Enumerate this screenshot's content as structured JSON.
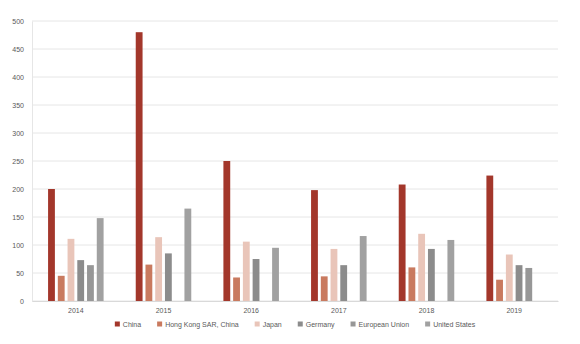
{
  "chart_data": {
    "type": "bar",
    "categories": [
      "2014",
      "2015",
      "2016",
      "2017",
      "2018",
      "2019"
    ],
    "series": [
      {
        "name": "China",
        "color": "#a3372b",
        "values": [
          200,
          480,
          250,
          198,
          208,
          224
        ]
      },
      {
        "name": "Hong Kong SAR, China",
        "color": "#c97a5f",
        "values": [
          45,
          65,
          42,
          44,
          60,
          38
        ]
      },
      {
        "name": "Japan",
        "color": "#e9c5b9",
        "values": [
          111,
          114,
          106,
          93,
          120,
          83
        ]
      },
      {
        "name": "Germany",
        "color": "#8c8c8c",
        "values": [
          73,
          85,
          75,
          64,
          93,
          64
        ]
      },
      {
        "name": "European Union",
        "color": "#979797",
        "values": [
          64,
          null,
          null,
          null,
          null,
          59
        ]
      },
      {
        "name": "United States",
        "color": "#a1a1a1",
        "values": [
          148,
          165,
          95,
          116,
          109,
          null
        ]
      }
    ],
    "ylim": [
      0,
      500
    ],
    "yticks": [
      0,
      50,
      100,
      150,
      200,
      250,
      300,
      350,
      400,
      450,
      500
    ],
    "grid": true,
    "legend": "bottom"
  }
}
